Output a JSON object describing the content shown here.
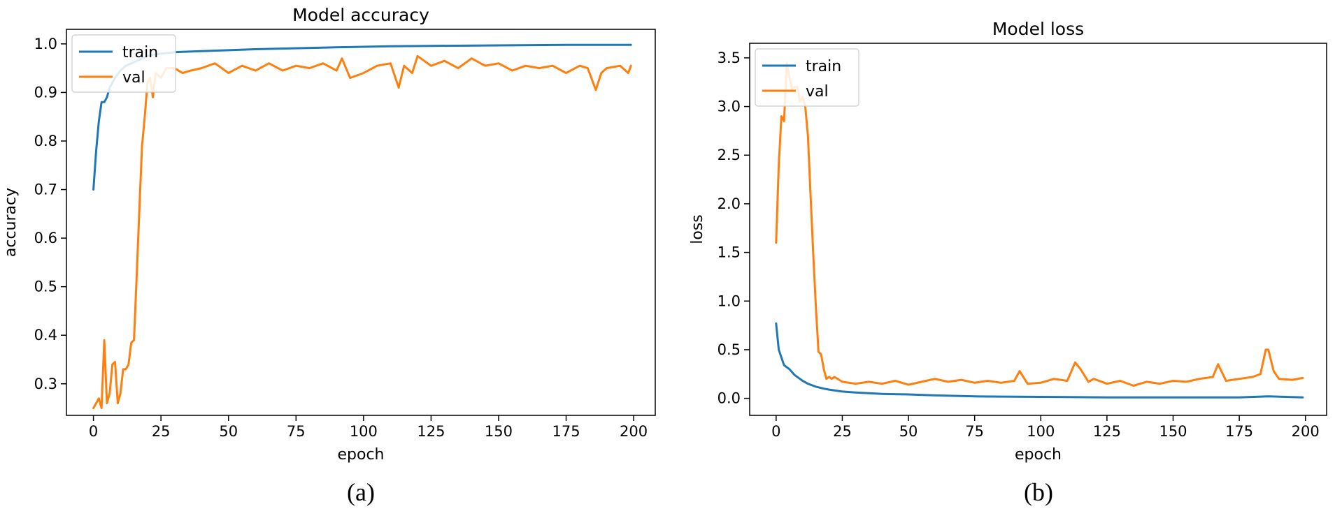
{
  "colors": {
    "train": "#1f77b4",
    "val": "#ff7f0e"
  },
  "chart_data": [
    {
      "type": "line",
      "title": "Model accuracy",
      "xlabel": "epoch",
      "ylabel": "accuracy",
      "caption": "(a)",
      "xlim": [
        -10,
        208
      ],
      "ylim": [
        0.235,
        1.03
      ],
      "xticks": [
        0,
        25,
        50,
        75,
        100,
        125,
        150,
        175,
        200
      ],
      "yticks": [
        0.3,
        0.4,
        0.5,
        0.6,
        0.7,
        0.8,
        0.9,
        1.0
      ],
      "ytick_labels": [
        "0.3",
        "0.4",
        "0.5",
        "0.6",
        "0.7",
        "0.8",
        "0.9",
        "1.0"
      ],
      "legend": "upper-left",
      "series": [
        {
          "name": "train",
          "color": "#1f77b4",
          "x": [
            0,
            1,
            2,
            3,
            4,
            5,
            6,
            8,
            10,
            12,
            14,
            16,
            18,
            20,
            22,
            25,
            30,
            40,
            50,
            60,
            75,
            90,
            100,
            110,
            125,
            150,
            175,
            199
          ],
          "y": [
            0.7,
            0.78,
            0.84,
            0.88,
            0.88,
            0.89,
            0.91,
            0.93,
            0.945,
            0.955,
            0.96,
            0.965,
            0.97,
            0.975,
            0.978,
            0.98,
            0.983,
            0.985,
            0.987,
            0.989,
            0.991,
            0.993,
            0.994,
            0.995,
            0.996,
            0.997,
            0.998,
            0.998
          ]
        },
        {
          "name": "val",
          "color": "#ff7f0e",
          "x": [
            0,
            1,
            2,
            3,
            4,
            5,
            6,
            7,
            8,
            9,
            10,
            11,
            12,
            13,
            14,
            15,
            16,
            17,
            18,
            19,
            20,
            21,
            22,
            23,
            25,
            27,
            30,
            33,
            36,
            40,
            45,
            50,
            55,
            60,
            65,
            70,
            75,
            80,
            85,
            90,
            92,
            95,
            100,
            105,
            110,
            113,
            115,
            118,
            120,
            125,
            130,
            135,
            140,
            145,
            150,
            155,
            160,
            165,
            170,
            175,
            180,
            183,
            186,
            188,
            190,
            195,
            198,
            199
          ],
          "y": [
            0.25,
            0.26,
            0.27,
            0.25,
            0.39,
            0.26,
            0.28,
            0.34,
            0.345,
            0.26,
            0.28,
            0.33,
            0.33,
            0.34,
            0.385,
            0.39,
            0.52,
            0.66,
            0.79,
            0.85,
            0.92,
            0.93,
            0.89,
            0.94,
            0.93,
            0.95,
            0.95,
            0.94,
            0.945,
            0.95,
            0.96,
            0.94,
            0.955,
            0.945,
            0.96,
            0.945,
            0.955,
            0.95,
            0.96,
            0.945,
            0.97,
            0.93,
            0.94,
            0.955,
            0.96,
            0.91,
            0.955,
            0.94,
            0.975,
            0.955,
            0.965,
            0.95,
            0.97,
            0.955,
            0.96,
            0.945,
            0.955,
            0.95,
            0.955,
            0.94,
            0.955,
            0.95,
            0.905,
            0.94,
            0.95,
            0.955,
            0.94,
            0.955
          ]
        }
      ]
    },
    {
      "type": "line",
      "title": "Model loss",
      "xlabel": "epoch",
      "ylabel": "loss",
      "caption": "(b)",
      "xlim": [
        -10,
        208
      ],
      "ylim": [
        -0.175,
        3.65
      ],
      "xticks": [
        0,
        25,
        50,
        75,
        100,
        125,
        150,
        175,
        200
      ],
      "yticks": [
        0.0,
        0.5,
        1.0,
        1.5,
        2.0,
        2.5,
        3.0,
        3.5
      ],
      "ytick_labels": [
        "0.0",
        "0.5",
        "1.0",
        "1.5",
        "2.0",
        "2.5",
        "3.0",
        "3.5"
      ],
      "legend": "upper-left",
      "series": [
        {
          "name": "train",
          "color": "#1f77b4",
          "x": [
            0,
            1,
            2,
            3,
            5,
            7,
            10,
            12,
            15,
            18,
            20,
            25,
            30,
            40,
            50,
            60,
            75,
            100,
            125,
            150,
            175,
            186,
            199
          ],
          "y": [
            0.77,
            0.5,
            0.42,
            0.34,
            0.3,
            0.24,
            0.18,
            0.15,
            0.12,
            0.1,
            0.09,
            0.07,
            0.06,
            0.045,
            0.04,
            0.03,
            0.02,
            0.015,
            0.01,
            0.01,
            0.01,
            0.02,
            0.01
          ]
        },
        {
          "name": "val",
          "color": "#ff7f0e",
          "x": [
            0,
            1,
            2,
            3,
            4,
            5,
            6,
            7,
            8,
            9,
            10,
            11,
            12,
            13,
            14,
            15,
            16,
            17,
            18,
            19,
            20,
            21,
            22,
            25,
            30,
            35,
            40,
            45,
            50,
            55,
            60,
            65,
            70,
            75,
            80,
            85,
            90,
            92,
            95,
            100,
            105,
            110,
            113,
            115,
            118,
            120,
            125,
            130,
            135,
            140,
            145,
            150,
            155,
            160,
            165,
            167,
            170,
            175,
            180,
            183,
            185,
            186,
            188,
            190,
            195,
            199
          ],
          "y": [
            1.6,
            2.4,
            2.9,
            2.85,
            3.45,
            3.3,
            3.18,
            3.2,
            3.2,
            3.05,
            3.1,
            3.0,
            2.7,
            2.1,
            1.5,
            0.95,
            0.48,
            0.45,
            0.3,
            0.2,
            0.22,
            0.2,
            0.22,
            0.17,
            0.15,
            0.17,
            0.15,
            0.18,
            0.14,
            0.17,
            0.2,
            0.17,
            0.19,
            0.16,
            0.18,
            0.16,
            0.18,
            0.28,
            0.15,
            0.16,
            0.2,
            0.18,
            0.37,
            0.3,
            0.17,
            0.2,
            0.15,
            0.18,
            0.13,
            0.17,
            0.15,
            0.18,
            0.17,
            0.2,
            0.22,
            0.35,
            0.18,
            0.2,
            0.22,
            0.25,
            0.5,
            0.5,
            0.28,
            0.2,
            0.19,
            0.21
          ]
        }
      ]
    }
  ]
}
